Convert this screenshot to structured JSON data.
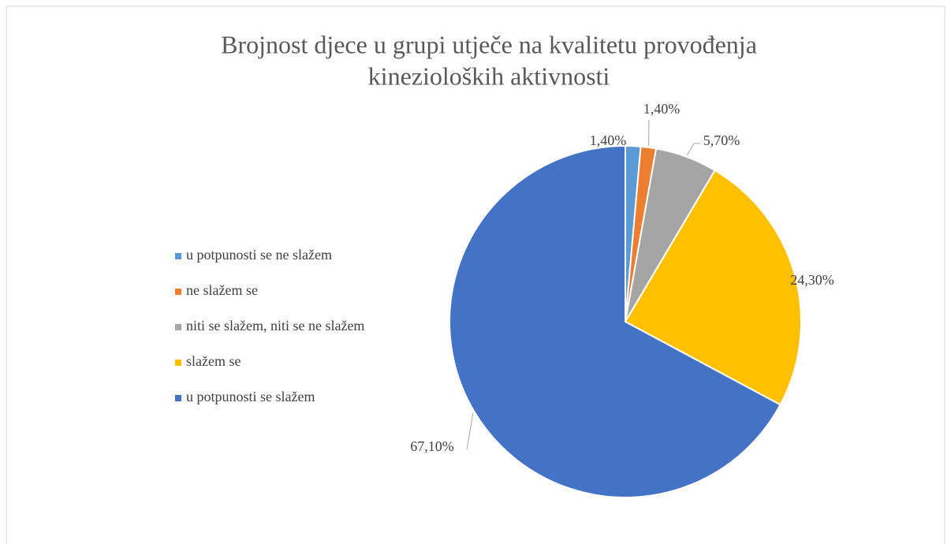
{
  "chart_data": {
    "type": "pie",
    "title": [
      "Brojnost djece u grupi utječe na kvalitetu provođenja",
      "kinezioloških aktivnosti"
    ],
    "categories": [
      "u potpunosti se ne slažem",
      "ne slažem se",
      "niti se slažem, niti se ne slažem",
      "slažem se",
      "u potpunosti se slažem"
    ],
    "values": [
      1.4,
      1.4,
      5.7,
      24.3,
      67.1
    ],
    "value_labels": [
      "1,40%",
      "1,40%",
      "5,70%",
      "24,30%",
      "67,10%"
    ],
    "colors": [
      "#5b9bd5",
      "#ed7d31",
      "#a5a5a5",
      "#ffc000",
      "#4472c4"
    ],
    "legend": "left"
  }
}
